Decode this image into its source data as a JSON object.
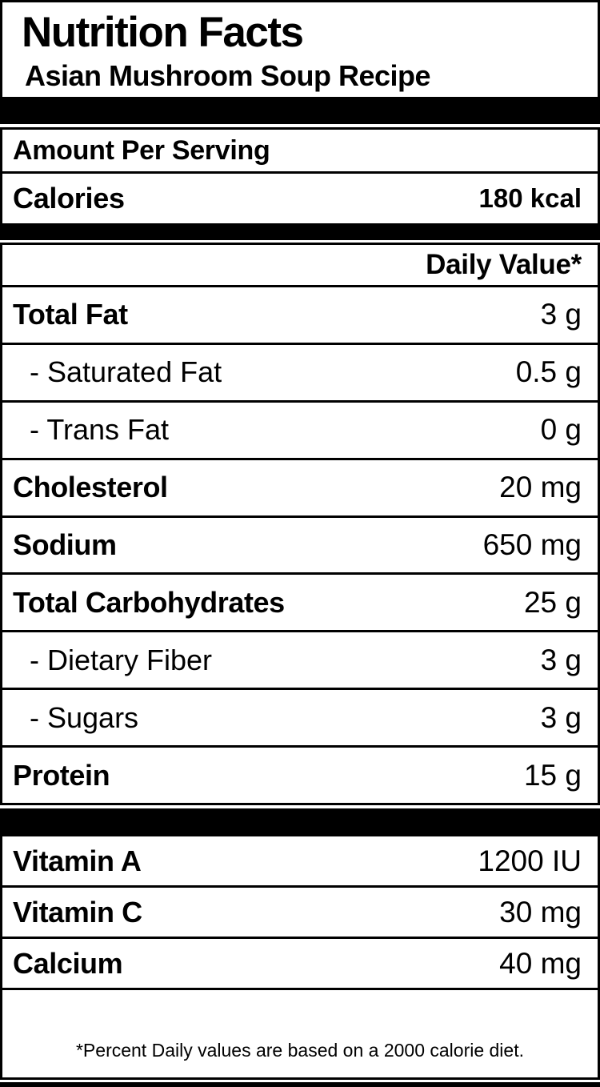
{
  "header": {
    "title": "Nutrition Facts",
    "subtitle": "Asian Mushroom Soup Recipe"
  },
  "serving": {
    "amount_per_serving_label": "Amount Per Serving",
    "calories_label": "Calories",
    "calories_value": "180 kcal"
  },
  "daily_value_header": "Daily Value*",
  "nutrients": [
    {
      "label": "Total Fat",
      "value": "3 g",
      "style": "bold"
    },
    {
      "label": "- Saturated Fat",
      "value": "0.5 g",
      "style": "sub"
    },
    {
      "label": "- Trans Fat",
      "value": "0 g",
      "style": "sub"
    },
    {
      "label": "Cholesterol",
      "value": "20 mg",
      "style": "bold"
    },
    {
      "label": "Sodium",
      "value": "650 mg",
      "style": "bold"
    },
    {
      "label": "Total Carbohydrates",
      "value": "25 g",
      "style": "bold"
    },
    {
      "label": "- Dietary Fiber",
      "value": "3 g",
      "style": "sub"
    },
    {
      "label": "- Sugars",
      "value": "3 g",
      "style": "sub"
    },
    {
      "label": "Protein",
      "value": "15 g",
      "style": "bold"
    }
  ],
  "micronutrients": [
    {
      "label": "Vitamin A",
      "value": "1200 IU"
    },
    {
      "label": "Vitamin C",
      "value": "30 mg"
    },
    {
      "label": "Calcium",
      "value": "40 mg"
    }
  ],
  "footnote": "*Percent Daily values are based on a 2000 calorie diet.",
  "colors": {
    "text": "#000000",
    "background": "#ffffff",
    "border": "#000000"
  }
}
